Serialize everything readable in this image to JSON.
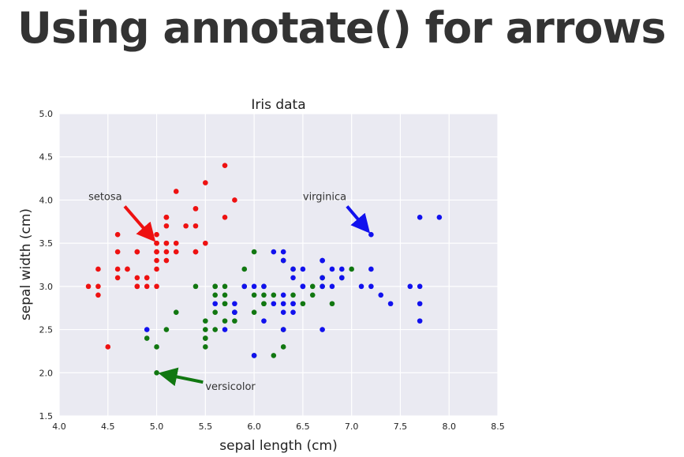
{
  "slide": {
    "title": "Using annotate() for arrows"
  },
  "colors": {
    "axes_bg": "#eaeaf2",
    "grid": "#ffffff",
    "setosa": "#ee1111",
    "versicolor": "#117711",
    "virginica": "#1111ee",
    "text": "#333333"
  },
  "chart_data": {
    "type": "scatter",
    "title": "Iris data",
    "xlabel": "sepal length (cm)",
    "ylabel": "sepal width (cm)",
    "xlim": [
      4.0,
      8.5
    ],
    "ylim": [
      1.5,
      5.0
    ],
    "grid": true,
    "xticks": [
      "4.0",
      "4.5",
      "5.0",
      "5.5",
      "6.0",
      "6.5",
      "7.0",
      "7.5",
      "8.0",
      "8.5"
    ],
    "yticks": [
      "1.5",
      "2.0",
      "2.5",
      "3.0",
      "3.5",
      "4.0",
      "4.5",
      "5.0"
    ],
    "series": [
      {
        "name": "setosa",
        "color": "#ee1111",
        "x": [
          5.1,
          4.9,
          4.7,
          4.6,
          5.0,
          5.4,
          4.6,
          5.0,
          4.4,
          4.9,
          5.4,
          4.8,
          4.8,
          4.3,
          5.8,
          5.7,
          5.4,
          5.1,
          5.7,
          5.1,
          5.4,
          5.1,
          4.6,
          5.1,
          4.8,
          5.0,
          5.0,
          5.2,
          5.2,
          4.7,
          4.8,
          5.4,
          5.2,
          5.5,
          4.9,
          5.0,
          5.5,
          4.9,
          4.4,
          5.1,
          5.0,
          4.5,
          4.4,
          5.0,
          5.1,
          4.8,
          5.1,
          4.6,
          5.3,
          5.0
        ],
        "y": [
          3.5,
          3.0,
          3.2,
          3.1,
          3.6,
          3.9,
          3.4,
          3.4,
          2.9,
          3.1,
          3.7,
          3.4,
          3.0,
          3.0,
          4.0,
          4.4,
          3.9,
          3.5,
          3.8,
          3.8,
          3.4,
          3.7,
          3.6,
          3.3,
          3.4,
          3.0,
          3.4,
          3.5,
          3.4,
          3.2,
          3.1,
          3.4,
          4.1,
          4.2,
          3.1,
          3.2,
          3.5,
          3.6,
          3.0,
          3.4,
          3.5,
          2.3,
          3.2,
          3.5,
          3.8,
          3.0,
          3.8,
          3.2,
          3.7,
          3.3
        ]
      },
      {
        "name": "versicolor",
        "color": "#117711",
        "x": [
          7.0,
          6.4,
          6.9,
          5.5,
          6.5,
          5.7,
          6.3,
          4.9,
          6.6,
          5.2,
          5.0,
          5.9,
          6.0,
          6.1,
          5.6,
          6.7,
          5.6,
          5.8,
          6.2,
          5.6,
          5.9,
          6.1,
          6.3,
          6.1,
          6.4,
          6.6,
          6.8,
          6.7,
          6.0,
          5.7,
          5.5,
          5.5,
          5.8,
          6.0,
          5.4,
          6.0,
          6.7,
          6.3,
          5.6,
          5.5,
          5.5,
          6.1,
          5.8,
          5.0,
          5.6,
          5.7,
          5.7,
          6.2,
          5.1,
          5.7
        ],
        "y": [
          3.2,
          3.2,
          3.1,
          2.3,
          2.8,
          2.8,
          3.3,
          2.4,
          2.9,
          2.7,
          2.0,
          3.0,
          2.2,
          2.9,
          2.9,
          3.1,
          3.0,
          2.7,
          2.2,
          2.5,
          3.2,
          2.8,
          2.5,
          2.8,
          2.9,
          3.0,
          2.8,
          3.0,
          2.9,
          2.6,
          2.4,
          2.4,
          2.7,
          2.7,
          3.0,
          3.4,
          3.1,
          2.3,
          3.0,
          2.5,
          2.6,
          3.0,
          2.6,
          2.3,
          2.7,
          3.0,
          2.9,
          2.9,
          2.5,
          2.8
        ]
      },
      {
        "name": "virginica",
        "color": "#1111ee",
        "x": [
          6.3,
          5.8,
          7.1,
          6.3,
          6.5,
          7.6,
          4.9,
          7.3,
          6.7,
          7.2,
          6.5,
          6.4,
          6.8,
          5.7,
          5.8,
          6.4,
          6.5,
          7.7,
          7.7,
          6.0,
          6.9,
          5.6,
          7.7,
          6.3,
          6.7,
          7.2,
          6.2,
          6.1,
          6.4,
          7.2,
          7.4,
          7.9,
          6.4,
          6.3,
          6.1,
          7.7,
          6.3,
          6.4,
          6.0,
          6.9,
          6.7,
          6.9,
          5.8,
          6.8,
          6.7,
          6.7,
          6.3,
          6.5,
          6.2,
          5.9
        ],
        "y": [
          3.3,
          2.7,
          3.0,
          2.9,
          3.0,
          3.0,
          2.5,
          2.9,
          2.5,
          3.6,
          3.2,
          2.7,
          3.0,
          2.5,
          2.8,
          3.2,
          3.0,
          3.8,
          2.6,
          2.2,
          3.2,
          2.8,
          2.8,
          2.7,
          3.3,
          3.2,
          2.8,
          3.0,
          2.8,
          3.0,
          2.8,
          3.8,
          2.8,
          2.8,
          2.6,
          3.0,
          3.4,
          3.1,
          3.0,
          3.1,
          3.1,
          3.1,
          2.7,
          3.2,
          3.3,
          3.0,
          2.5,
          3.0,
          3.4,
          3.0
        ]
      }
    ],
    "annotations": [
      {
        "text": "setosa",
        "xy": [
          5.0,
          3.5
        ],
        "xytext": [
          4.3,
          4.0
        ],
        "color": "#ee1111"
      },
      {
        "text": "versicolor",
        "xy": [
          5.0,
          2.0
        ],
        "xytext": [
          5.5,
          1.8
        ],
        "color": "#117711"
      },
      {
        "text": "virginica",
        "xy": [
          7.2,
          3.6
        ],
        "xytext": [
          6.5,
          4.0
        ],
        "color": "#1111ee"
      }
    ]
  }
}
